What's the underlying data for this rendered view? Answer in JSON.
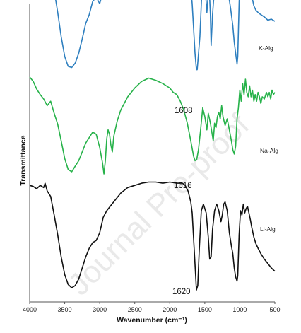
{
  "chart_data": {
    "type": "line",
    "xlabel": "Wavenumber (cm⁻¹)",
    "ylabel": "Transmittance",
    "xlim": [
      4000,
      500
    ],
    "x_reversed": true,
    "x_ticks": [
      "4000",
      "3500",
      "3000",
      "2500",
      "2000",
      "1500",
      "1000",
      "500"
    ],
    "y_ticks_shown": false,
    "grid": false,
    "legend": "inline labels at right",
    "watermark": "Journal Pre-proof",
    "series": [
      {
        "name": "K-Alg",
        "color": "#2e7fbf",
        "peak_label": "1608",
        "peak_x": 1608,
        "offset": 0.78,
        "points": [
          [
            4000,
            0.97
          ],
          [
            3900,
            0.95
          ],
          [
            3800,
            0.93
          ],
          [
            3750,
            0.95
          ],
          [
            3700,
            0.86
          ],
          [
            3650,
            0.72
          ],
          [
            3600,
            0.52
          ],
          [
            3550,
            0.3
          ],
          [
            3500,
            0.12
          ],
          [
            3450,
            0.03
          ],
          [
            3400,
            0.02
          ],
          [
            3350,
            0.06
          ],
          [
            3300,
            0.15
          ],
          [
            3250,
            0.28
          ],
          [
            3200,
            0.42
          ],
          [
            3150,
            0.5
          ],
          [
            3100,
            0.62
          ],
          [
            3050,
            0.66
          ],
          [
            3000,
            0.6
          ],
          [
            2950,
            0.72
          ],
          [
            2900,
            0.84
          ],
          [
            2800,
            0.93
          ],
          [
            2700,
            0.97
          ],
          [
            2500,
            1.0
          ],
          [
            2300,
            1.0
          ],
          [
            2100,
            1.0
          ],
          [
            1950,
            0.99
          ],
          [
            1800,
            0.97
          ],
          [
            1720,
            0.9
          ],
          [
            1680,
            0.6
          ],
          [
            1640,
            0.15
          ],
          [
            1620,
            0.0
          ],
          [
            1608,
            0.0
          ],
          [
            1570,
            0.3
          ],
          [
            1540,
            0.74
          ],
          [
            1500,
            0.8
          ],
          [
            1470,
            0.52
          ],
          [
            1440,
            0.78
          ],
          [
            1420,
            0.5
          ],
          [
            1410,
            0.22
          ],
          [
            1390,
            0.5
          ],
          [
            1360,
            0.75
          ],
          [
            1320,
            0.8
          ],
          [
            1300,
            0.66
          ],
          [
            1270,
            0.72
          ],
          [
            1250,
            0.68
          ],
          [
            1230,
            0.76
          ],
          [
            1200,
            0.82
          ],
          [
            1170,
            0.72
          ],
          [
            1130,
            0.55
          ],
          [
            1100,
            0.4
          ],
          [
            1080,
            0.25
          ],
          [
            1060,
            0.15
          ],
          [
            1040,
            0.05
          ],
          [
            1030,
            0.12
          ],
          [
            1010,
            0.6
          ],
          [
            1000,
            0.8
          ],
          [
            980,
            0.78
          ],
          [
            960,
            0.84
          ],
          [
            940,
            0.74
          ],
          [
            920,
            0.84
          ],
          [
            900,
            0.86
          ],
          [
            880,
            0.8
          ],
          [
            860,
            0.76
          ],
          [
            840,
            0.7
          ],
          [
            820,
            0.64
          ],
          [
            800,
            0.58
          ],
          [
            770,
            0.54
          ],
          [
            740,
            0.52
          ],
          [
            700,
            0.5
          ],
          [
            650,
            0.48
          ],
          [
            600,
            0.45
          ],
          [
            550,
            0.46
          ],
          [
            500,
            0.44
          ]
        ]
      },
      {
        "name": "Na-Alg",
        "color": "#27b24a",
        "peak_label": "1616",
        "peak_x": 1616,
        "offset": 0.43,
        "points": [
          [
            4000,
            0.88
          ],
          [
            3950,
            0.84
          ],
          [
            3900,
            0.77
          ],
          [
            3850,
            0.72
          ],
          [
            3800,
            0.68
          ],
          [
            3750,
            0.62
          ],
          [
            3700,
            0.66
          ],
          [
            3650,
            0.55
          ],
          [
            3600,
            0.45
          ],
          [
            3550,
            0.3
          ],
          [
            3500,
            0.14
          ],
          [
            3450,
            0.04
          ],
          [
            3400,
            0.02
          ],
          [
            3350,
            0.07
          ],
          [
            3300,
            0.12
          ],
          [
            3250,
            0.2
          ],
          [
            3200,
            0.28
          ],
          [
            3150,
            0.33
          ],
          [
            3100,
            0.38
          ],
          [
            3050,
            0.36
          ],
          [
            3000,
            0.24
          ],
          [
            2960,
            0.1
          ],
          [
            2940,
            0.0
          ],
          [
            2920,
            0.12
          ],
          [
            2900,
            0.32
          ],
          [
            2880,
            0.4
          ],
          [
            2860,
            0.36
          ],
          [
            2840,
            0.26
          ],
          [
            2820,
            0.2
          ],
          [
            2800,
            0.34
          ],
          [
            2750,
            0.48
          ],
          [
            2700,
            0.58
          ],
          [
            2600,
            0.7
          ],
          [
            2500,
            0.78
          ],
          [
            2400,
            0.84
          ],
          [
            2300,
            0.87
          ],
          [
            2200,
            0.85
          ],
          [
            2100,
            0.82
          ],
          [
            2000,
            0.78
          ],
          [
            1950,
            0.74
          ],
          [
            1900,
            0.72
          ],
          [
            1850,
            0.66
          ],
          [
            1800,
            0.58
          ],
          [
            1750,
            0.46
          ],
          [
            1700,
            0.3
          ],
          [
            1660,
            0.16
          ],
          [
            1640,
            0.12
          ],
          [
            1616,
            0.13
          ],
          [
            1590,
            0.22
          ],
          [
            1560,
            0.4
          ],
          [
            1530,
            0.6
          ],
          [
            1500,
            0.52
          ],
          [
            1470,
            0.4
          ],
          [
            1450,
            0.55
          ],
          [
            1420,
            0.46
          ],
          [
            1400,
            0.38
          ],
          [
            1380,
            0.3
          ],
          [
            1360,
            0.46
          ],
          [
            1340,
            0.42
          ],
          [
            1320,
            0.52
          ],
          [
            1300,
            0.56
          ],
          [
            1280,
            0.5
          ],
          [
            1260,
            0.62
          ],
          [
            1240,
            0.52
          ],
          [
            1210,
            0.44
          ],
          [
            1180,
            0.5
          ],
          [
            1150,
            0.4
          ],
          [
            1120,
            0.3
          ],
          [
            1100,
            0.22
          ],
          [
            1080,
            0.18
          ],
          [
            1060,
            0.25
          ],
          [
            1040,
            0.5
          ],
          [
            1020,
            0.6
          ],
          [
            1000,
            0.76
          ],
          [
            980,
            0.66
          ],
          [
            960,
            0.82
          ],
          [
            940,
            0.72
          ],
          [
            920,
            0.86
          ],
          [
            900,
            0.74
          ],
          [
            880,
            0.7
          ],
          [
            860,
            0.8
          ],
          [
            840,
            0.7
          ],
          [
            820,
            0.76
          ],
          [
            800,
            0.66
          ],
          [
            780,
            0.72
          ],
          [
            760,
            0.66
          ],
          [
            740,
            0.74
          ],
          [
            720,
            0.7
          ],
          [
            700,
            0.64
          ],
          [
            680,
            0.7
          ],
          [
            650,
            0.68
          ],
          [
            620,
            0.74
          ],
          [
            600,
            0.7
          ],
          [
            580,
            0.74
          ],
          [
            560,
            0.68
          ],
          [
            540,
            0.76
          ],
          [
            520,
            0.72
          ],
          [
            500,
            0.74
          ]
        ]
      },
      {
        "name": "Li-Alg",
        "color": "#111111",
        "peak_label": "1620",
        "peak_x": 1620,
        "offset": 0.04,
        "points": [
          [
            4000,
            0.95
          ],
          [
            3950,
            0.94
          ],
          [
            3900,
            0.92
          ],
          [
            3850,
            0.95
          ],
          [
            3800,
            0.93
          ],
          [
            3780,
            0.97
          ],
          [
            3750,
            0.9
          ],
          [
            3700,
            0.85
          ],
          [
            3650,
            0.68
          ],
          [
            3600,
            0.5
          ],
          [
            3550,
            0.3
          ],
          [
            3500,
            0.14
          ],
          [
            3450,
            0.05
          ],
          [
            3400,
            0.02
          ],
          [
            3350,
            0.04
          ],
          [
            3300,
            0.1
          ],
          [
            3250,
            0.2
          ],
          [
            3200,
            0.3
          ],
          [
            3150,
            0.38
          ],
          [
            3100,
            0.43
          ],
          [
            3050,
            0.45
          ],
          [
            3000,
            0.52
          ],
          [
            2950,
            0.66
          ],
          [
            2900,
            0.72
          ],
          [
            2850,
            0.76
          ],
          [
            2800,
            0.8
          ],
          [
            2700,
            0.88
          ],
          [
            2600,
            0.93
          ],
          [
            2500,
            0.95
          ],
          [
            2400,
            0.97
          ],
          [
            2300,
            0.98
          ],
          [
            2200,
            0.98
          ],
          [
            2100,
            0.97
          ],
          [
            2000,
            0.98
          ],
          [
            1900,
            0.97
          ],
          [
            1820,
            0.97
          ],
          [
            1780,
            0.95
          ],
          [
            1740,
            0.9
          ],
          [
            1700,
            0.8
          ],
          [
            1680,
            0.7
          ],
          [
            1650,
            0.35
          ],
          [
            1620,
            0.0
          ],
          [
            1600,
            0.04
          ],
          [
            1580,
            0.35
          ],
          [
            1550,
            0.72
          ],
          [
            1520,
            0.78
          ],
          [
            1480,
            0.7
          ],
          [
            1450,
            0.48
          ],
          [
            1430,
            0.28
          ],
          [
            1410,
            0.3
          ],
          [
            1390,
            0.55
          ],
          [
            1360,
            0.72
          ],
          [
            1330,
            0.78
          ],
          [
            1300,
            0.72
          ],
          [
            1270,
            0.62
          ],
          [
            1250,
            0.68
          ],
          [
            1230,
            0.78
          ],
          [
            1210,
            0.8
          ],
          [
            1180,
            0.72
          ],
          [
            1150,
            0.52
          ],
          [
            1120,
            0.4
          ],
          [
            1100,
            0.33
          ],
          [
            1080,
            0.2
          ],
          [
            1060,
            0.12
          ],
          [
            1040,
            0.08
          ],
          [
            1030,
            0.13
          ],
          [
            1010,
            0.5
          ],
          [
            990,
            0.72
          ],
          [
            970,
            0.68
          ],
          [
            950,
            0.78
          ],
          [
            930,
            0.7
          ],
          [
            910,
            0.74
          ],
          [
            890,
            0.76
          ],
          [
            870,
            0.7
          ],
          [
            850,
            0.64
          ],
          [
            830,
            0.57
          ],
          [
            800,
            0.48
          ],
          [
            770,
            0.42
          ],
          [
            740,
            0.38
          ],
          [
            700,
            0.33
          ],
          [
            650,
            0.28
          ],
          [
            600,
            0.24
          ],
          [
            550,
            0.2
          ],
          [
            500,
            0.17
          ]
        ]
      }
    ]
  }
}
